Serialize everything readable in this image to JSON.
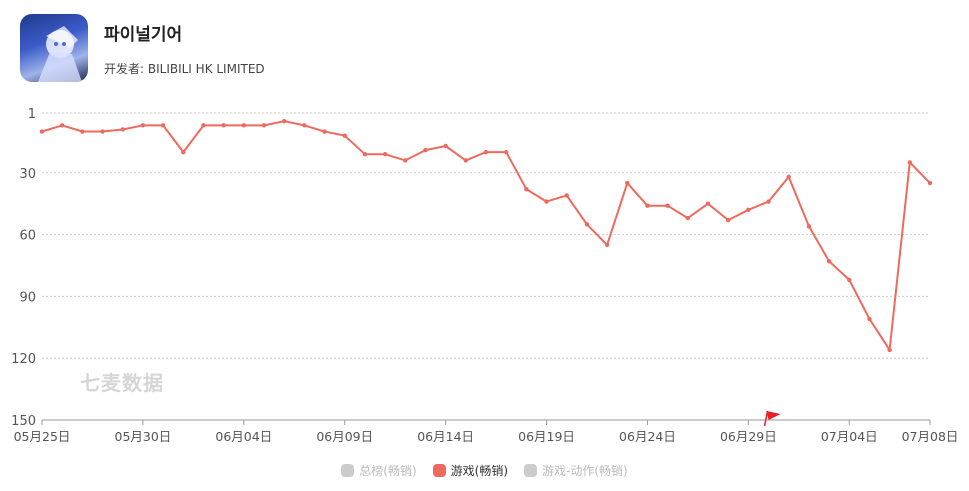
{
  "app": {
    "title": "파이널기어",
    "developer": "开发者: BILIBILI HK LIMITED"
  },
  "watermark": "七麦数据",
  "legend": [
    {
      "label": "总榜(畅销)",
      "active": false
    },
    {
      "label": "游戏(畅销)",
      "active": true
    },
    {
      "label": "游戏-动作(畅销)",
      "active": false
    }
  ],
  "colors": {
    "series": "#ee6a5e",
    "inactive": "#cccccc",
    "grid": "#cccccc",
    "flag": "#e8202a"
  },
  "chart_data": {
    "type": "line",
    "y_inverted": true,
    "ylim": [
      1,
      150
    ],
    "yticks": [
      1,
      30,
      60,
      90,
      120,
      150
    ],
    "xtick_labels": [
      "05月25日",
      "05月30日",
      "06月04日",
      "06月09日",
      "06月14日",
      "06月19日",
      "06月24日",
      "06月29日",
      "07月04日",
      "07月08日"
    ],
    "xtick_index": [
      0,
      5,
      10,
      15,
      20,
      25,
      30,
      35,
      40,
      44
    ],
    "series": [
      {
        "name": "游戏(畅销)",
        "values": [
          10,
          7,
          10,
          10,
          9,
          7,
          7,
          20,
          7,
          7,
          7,
          7,
          5,
          7,
          10,
          12,
          21,
          21,
          24,
          19,
          17,
          24,
          20,
          20,
          38,
          44,
          41,
          55,
          65,
          35,
          46,
          46,
          52,
          45,
          53,
          48,
          44,
          32,
          56,
          73,
          82,
          101,
          116,
          25,
          35
        ]
      }
    ],
    "marker_flag_index": 36
  }
}
